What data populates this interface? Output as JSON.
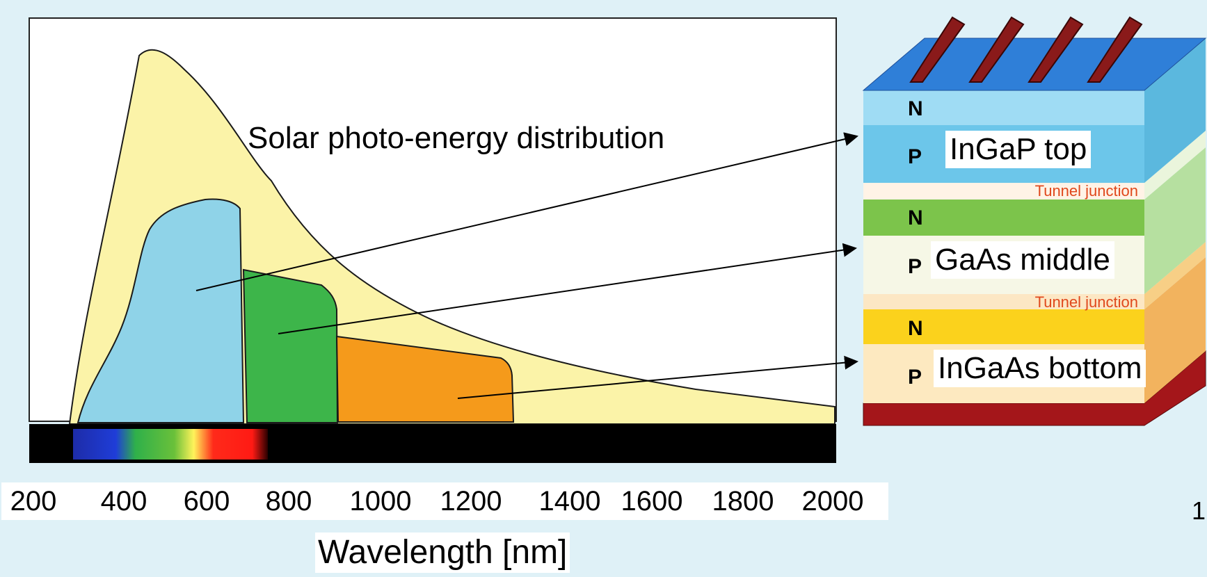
{
  "chart_title": "Solar photo-energy distribution",
  "x_axis": {
    "label": "Wavelength [nm]",
    "ticks": [
      "200",
      "400",
      "600",
      "800",
      "1000",
      "1200",
      "1400",
      "1600",
      "1800",
      "2000"
    ]
  },
  "layers": [
    {
      "name": "InGaP top",
      "color": "#8fd3e8"
    },
    {
      "name": "GaAs middle",
      "color": "#3db54a"
    },
    {
      "name": "InGaAs bottom",
      "color": "#f59a1b"
    }
  ],
  "layer_letters": {
    "n": "N",
    "p": "P"
  },
  "tunnel_label": "Tunnel junction",
  "page_number": "1",
  "colors": {
    "solar_spectrum": "#fbf3a8",
    "background": "#dff1f7",
    "spectrum_bar": "#000000",
    "contact": "#8a1a1a"
  }
}
